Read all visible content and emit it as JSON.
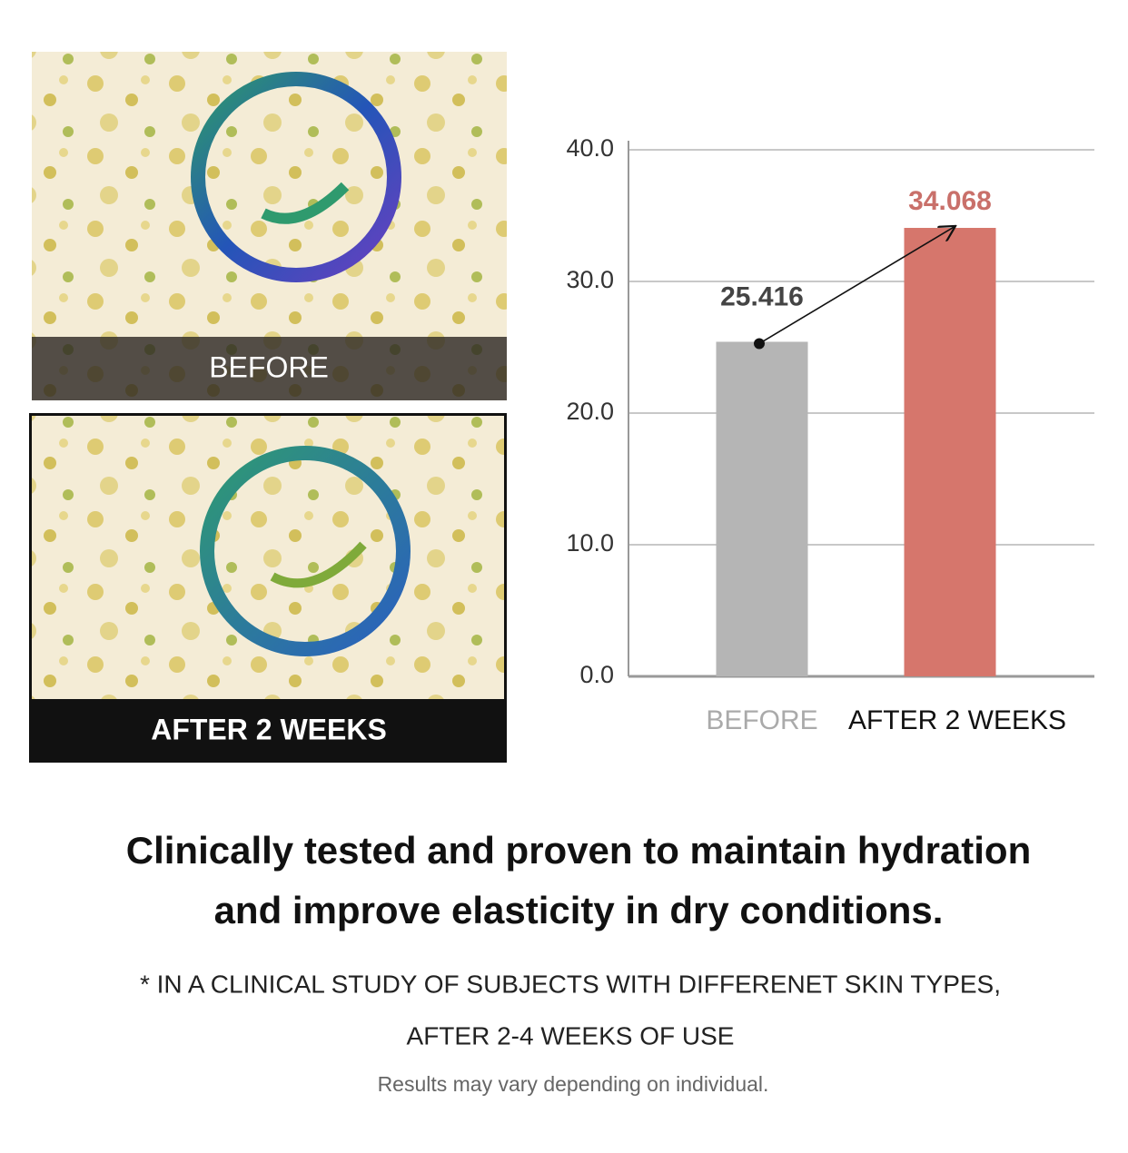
{
  "images": [
    {
      "label": "BEFORE"
    },
    {
      "label": "AFTER 2 WEEKS"
    }
  ],
  "chart_data": {
    "type": "bar",
    "categories": [
      "BEFORE",
      "AFTER 2 WEEKS"
    ],
    "values": [
      25.416,
      34.068
    ],
    "colors": [
      "#b5b5b5",
      "#d6766c"
    ],
    "ylim": [
      0,
      40
    ],
    "yticks": [
      {
        "value": 0,
        "label": "0.0"
      },
      {
        "value": 10,
        "label": "10.0"
      },
      {
        "value": 20,
        "label": "20.0"
      },
      {
        "value": 30,
        "label": "30.0"
      },
      {
        "value": 40,
        "label": "40.0"
      }
    ],
    "grid": true
  },
  "headline": [
    "Clinically tested and proven to maintain hydration",
    "and improve elasticity in dry conditions."
  ],
  "footnote": [
    "* IN A CLINICAL STUDY OF SUBJECTS WITH DIFFERENET SKIN TYPES,",
    "AFTER 2-4 WEEKS OF USE"
  ],
  "disclaimer": "Results may vary depending on individual."
}
